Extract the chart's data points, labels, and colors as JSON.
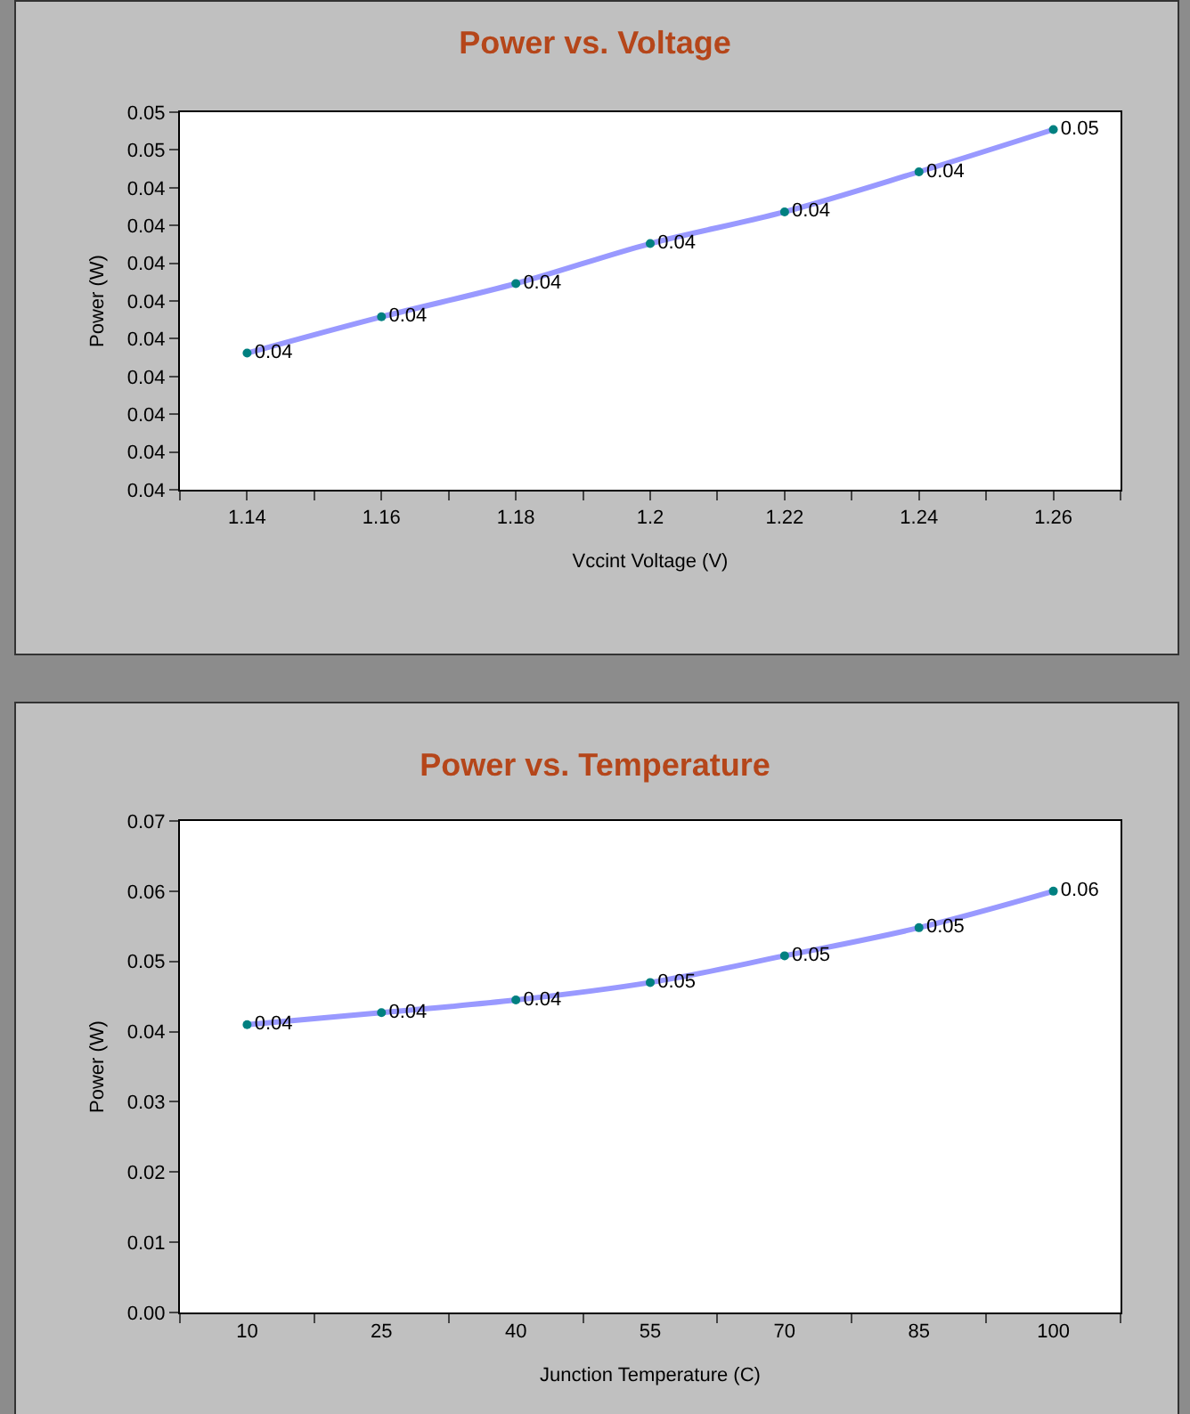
{
  "chart_data": [
    {
      "type": "line",
      "title": "Power vs. Voltage",
      "xlabel": "Vccint Voltage (V)",
      "ylabel": "Power (W)",
      "x": [
        1.14,
        1.16,
        1.18,
        1.2,
        1.22,
        1.24,
        1.26
      ],
      "series": [
        {
          "color": "#9999ff",
          "values": [
            0.04231,
            0.04279,
            0.04323,
            0.04376,
            0.04418,
            0.04471,
            0.04527
          ],
          "value_labels": [
            "0.04",
            "0.04",
            "0.04",
            "0.04",
            "0.04",
            "0.04",
            "0.05"
          ]
        }
      ],
      "xlim": [
        1.13,
        1.27
      ],
      "xticks": [
        {
          "value": 1.13,
          "label": null
        },
        1.14,
        {
          "value": 1.15,
          "label": null
        },
        1.16,
        {
          "value": 1.17,
          "label": null
        },
        1.18,
        {
          "value": 1.19,
          "label": null
        },
        1.2,
        {
          "value": 1.21,
          "label": null
        },
        1.22,
        {
          "value": 1.23,
          "label": null
        },
        1.24,
        {
          "value": 1.25,
          "label": null
        },
        1.26,
        {
          "value": 1.27,
          "label": null
        }
      ],
      "ylim": [
        0.0405,
        0.0455
      ],
      "yticks": [
        {
          "value": 0.0405,
          "label": "0.04"
        },
        {
          "value": 0.041,
          "label": "0.04"
        },
        {
          "value": 0.0415,
          "label": "0.04"
        },
        {
          "value": 0.042,
          "label": "0.04"
        },
        {
          "value": 0.0425,
          "label": "0.04"
        },
        {
          "value": 0.043,
          "label": "0.04"
        },
        {
          "value": 0.0435,
          "label": "0.04"
        },
        {
          "value": 0.044,
          "label": "0.04"
        },
        {
          "value": 0.0445,
          "label": "0.04"
        },
        {
          "value": 0.045,
          "label": "0.05"
        },
        {
          "value": 0.0455,
          "label": "0.05"
        }
      ],
      "marker": "circle",
      "grid": false
    },
    {
      "type": "line",
      "title": "Power vs. Temperature",
      "xlabel": "Junction Temperature (C)",
      "ylabel": "Power (W)",
      "categories": [
        "10",
        "25",
        "40",
        "55",
        "70",
        "85",
        "100"
      ],
      "series": [
        {
          "color": "#9999ff",
          "values": [
            0.041,
            0.0427,
            0.0445,
            0.047,
            0.0508,
            0.0548,
            0.06
          ],
          "value_labels": [
            "0.04",
            "0.04",
            "0.04",
            "0.05",
            "0.05",
            "0.05",
            "0.06"
          ]
        }
      ],
      "ylim": [
        0,
        0.07
      ],
      "yticks": [
        {
          "value": 0,
          "label": "0.00"
        },
        {
          "value": 0.01,
          "label": "0.01"
        },
        {
          "value": 0.02,
          "label": "0.02"
        },
        {
          "value": 0.03,
          "label": "0.03"
        },
        {
          "value": 0.04,
          "label": "0.04"
        },
        {
          "value": 0.05,
          "label": "0.05"
        },
        {
          "value": 0.06,
          "label": "0.06"
        },
        {
          "value": 0.07,
          "label": "0.07"
        }
      ],
      "marker": "circle",
      "grid": false
    }
  ]
}
